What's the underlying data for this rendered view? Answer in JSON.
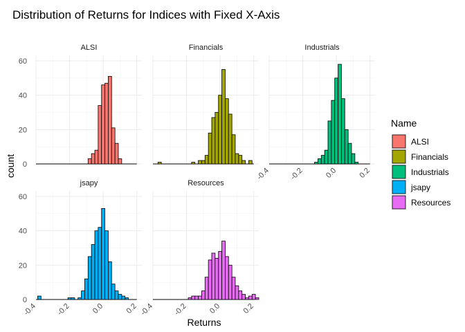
{
  "chart_data": {
    "type": "histogram-facets",
    "title": "Distribution of Returns for Indices with Fixed X-Axis",
    "xlabel": "Returns",
    "ylabel": "count",
    "xlim": [
      -0.4,
      0.23
    ],
    "ylim": [
      0,
      60
    ],
    "x_ticks": [
      -0.4,
      -0.2,
      0.0,
      0.2
    ],
    "x_tick_labels": [
      "-0.4",
      "-0.2",
      "0.0",
      "0.2"
    ],
    "y_ticks": [
      0,
      20,
      40,
      60
    ],
    "y_tick_labels": [
      "0",
      "20",
      "40",
      "60"
    ],
    "bin_width": 0.02,
    "legend_title": "Name",
    "legend_position": "right",
    "series": [
      {
        "name": "ALSI",
        "color": "#F8766D",
        "bin_centers": [
          -0.08,
          -0.06,
          -0.04,
          -0.02,
          0.0,
          0.02,
          0.04,
          0.06,
          0.08,
          0.1
        ],
        "counts": [
          3,
          6,
          8,
          34,
          46,
          47,
          51,
          21,
          12,
          3
        ]
      },
      {
        "name": "Financials",
        "color": "#A3A500",
        "bin_centers": [
          -0.36,
          -0.16,
          -0.12,
          -0.1,
          -0.08,
          -0.06,
          -0.04,
          -0.02,
          0.0,
          0.02,
          0.04,
          0.06,
          0.08,
          0.1,
          0.12,
          0.14,
          0.18
        ],
        "counts": [
          1,
          1,
          2,
          2,
          5,
          18,
          27,
          30,
          40,
          55,
          38,
          29,
          17,
          6,
          5,
          2,
          2
        ],
        "approximate": true
      },
      {
        "name": "Industrials",
        "color": "#00BF7D",
        "bin_centers": [
          -0.12,
          -0.1,
          -0.08,
          -0.06,
          -0.04,
          -0.02,
          0.0,
          0.02,
          0.04,
          0.06,
          0.08,
          0.1,
          0.12
        ],
        "counts": [
          1,
          3,
          5,
          8,
          25,
          37,
          50,
          58,
          38,
          20,
          12,
          6,
          1
        ],
        "approximate": true
      },
      {
        "name": "jsapy",
        "color": "#00B0F6",
        "bin_centers": [
          -0.38,
          -0.2,
          -0.18,
          -0.14,
          -0.12,
          -0.1,
          -0.08,
          -0.06,
          -0.04,
          -0.02,
          0.0,
          0.02,
          0.04,
          0.06,
          0.08,
          0.1,
          0.12,
          0.14
        ],
        "counts": [
          2,
          1,
          1,
          1,
          5,
          12,
          25,
          32,
          40,
          42,
          53,
          40,
          22,
          9,
          5,
          3,
          2,
          1
        ],
        "approximate": true
      },
      {
        "name": "Resources",
        "color": "#E76BF3",
        "bin_centers": [
          -0.18,
          -0.16,
          -0.14,
          -0.12,
          -0.1,
          -0.08,
          -0.06,
          -0.04,
          -0.02,
          0.0,
          0.02,
          0.04,
          0.06,
          0.08,
          0.1,
          0.12,
          0.14,
          0.16,
          0.18,
          0.2,
          0.22
        ],
        "counts": [
          1,
          2,
          2,
          2,
          5,
          13,
          23,
          27,
          24,
          28,
          34,
          25,
          20,
          13,
          8,
          5,
          3,
          1,
          2,
          3,
          1
        ],
        "approximate": true
      }
    ],
    "grid": true
  }
}
